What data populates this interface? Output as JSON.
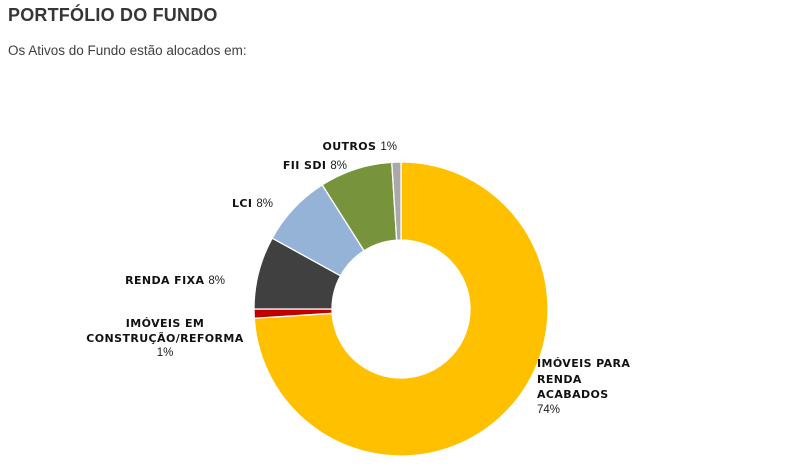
{
  "header": {
    "title": "PORTFÓLIO DO FUNDO",
    "subtitle": "Os Ativos do Fundo estão alocados em:"
  },
  "chart_data": {
    "type": "pie",
    "subtype": "donut",
    "title": "PORTFÓLIO DO FUNDO",
    "unit": "%",
    "direction": "clockwise",
    "start_angle_deg": 0,
    "inner_radius_ratio": 0.47,
    "legend_position": "labels-around-chart",
    "background": "#FFFFFF",
    "slices": [
      {
        "label": "IMÓVEIS PARA RENDA ACABADOS",
        "label_lines": [
          "IMÓVEIS PARA",
          "RENDA",
          "ACABADOS"
        ],
        "pct_label": "74%",
        "value": 74,
        "color": "#FFC000"
      },
      {
        "label": "IMÓVEIS EM CONSTRUÇÃO/REFORMA",
        "label_lines": [
          "IMÓVEIS EM",
          "CONSTRUÇÃO/REFORMA"
        ],
        "pct_label": "1%",
        "value": 1,
        "color": "#C00000"
      },
      {
        "label": "RENDA FIXA",
        "pct_label": "8%",
        "value": 8,
        "color": "#404040"
      },
      {
        "label": "LCI",
        "pct_label": "8%",
        "value": 8,
        "color": "#95B3D7"
      },
      {
        "label": "FII SDI",
        "pct_label": "8%",
        "value": 8,
        "color": "#77933C"
      },
      {
        "label": "OUTROS",
        "pct_label": "1%",
        "value": 1,
        "color": "#A9A9A9"
      }
    ]
  }
}
